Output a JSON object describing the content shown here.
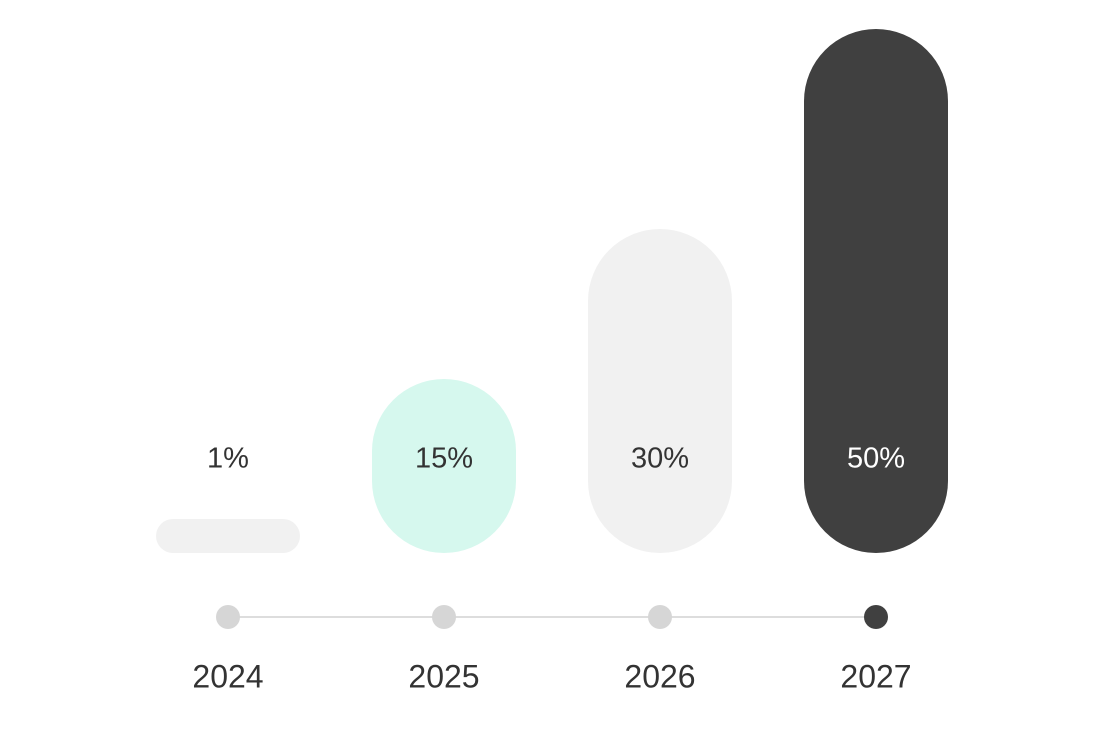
{
  "chart_data": {
    "type": "bar",
    "categories": [
      "2024",
      "2025",
      "2026",
      "2027"
    ],
    "values": [
      1,
      15,
      30,
      50
    ],
    "value_labels": [
      "1%",
      "15%",
      "30%",
      "50%"
    ],
    "colors": [
      "#f1f1f1",
      "#d6f8ee",
      "#f1f1f1",
      "#404040"
    ],
    "dot_colors": [
      "#d6d6d6",
      "#d6d6d6",
      "#d6d6d6",
      "#404040"
    ]
  }
}
